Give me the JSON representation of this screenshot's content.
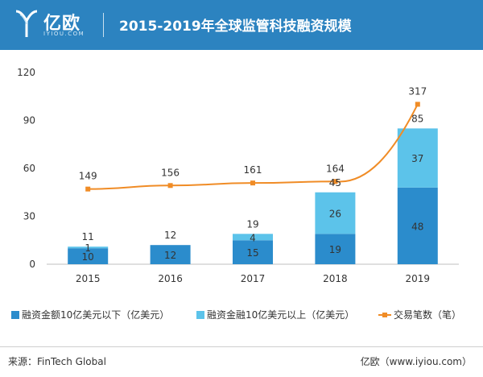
{
  "header": {
    "logo_text": "亿欧",
    "logo_sub": "IYIOU.COM",
    "title": "2015-2019年全球监管科技融资规模"
  },
  "colors": {
    "header_bg": "#2c83c0",
    "bar_lower": "#2b8ccc",
    "bar_upper": "#5cc3ea",
    "line": "#f08c26"
  },
  "chart_data": {
    "type": "bar",
    "subtype": "stacked bar with line overlay",
    "categories": [
      "2015",
      "2016",
      "2017",
      "2018",
      "2019"
    ],
    "ylim": [
      0,
      120
    ],
    "yticks": [
      "0",
      "30",
      "60",
      "90",
      "120"
    ],
    "grid": false,
    "series": [
      {
        "name": "融资金额10亿美元以下（亿美元）",
        "type": "bar",
        "values": [
          10,
          12,
          15,
          19,
          48
        ]
      },
      {
        "name": "融资金融10亿美元以上（亿美元）",
        "type": "bar",
        "values": [
          1,
          0,
          4,
          26,
          37
        ]
      },
      {
        "name": "交易笔数（笔）",
        "type": "line",
        "values": [
          149,
          156,
          161,
          164,
          317
        ]
      }
    ],
    "bar_totals": [
      "11",
      "12",
      "19",
      "45",
      "85"
    ],
    "lower_labels": [
      "10",
      "12",
      "15",
      "19",
      "48"
    ],
    "upper_labels": [
      "1",
      "",
      "4",
      "26",
      "37"
    ],
    "line_labels": [
      "149",
      "156",
      "161",
      "164",
      "317"
    ],
    "legend_position": "bottom"
  },
  "legend": {
    "lower": "融资金额10亿美元以下（亿美元）",
    "upper": "融资金融10亿美元以上（亿美元）",
    "line": "交易笔数（笔）"
  },
  "footer": {
    "source": "来源：FinTech Global",
    "brand": "亿欧（www.iyiou.com）"
  }
}
